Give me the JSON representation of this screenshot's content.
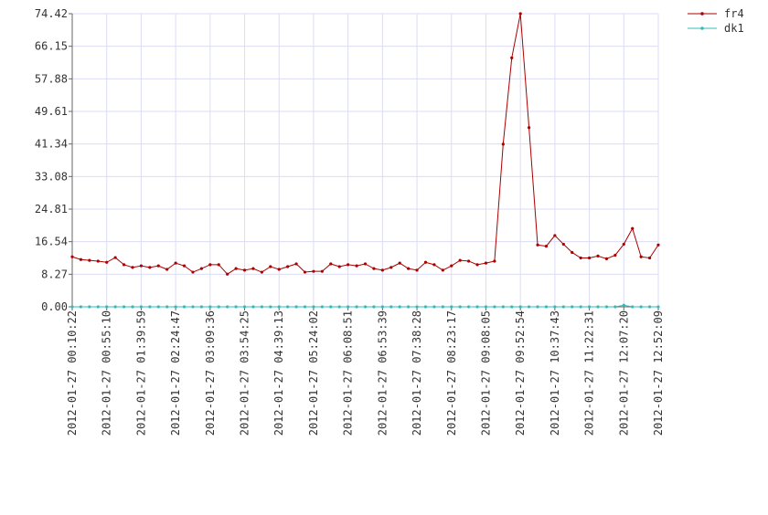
{
  "chart_data": {
    "type": "line",
    "categories": [
      "2012-01-27 00:10:22",
      null,
      null,
      null,
      "2012-01-27 00:55:10",
      null,
      null,
      null,
      "2012-01-27 01:39:59",
      null,
      null,
      null,
      "2012-01-27 02:24:47",
      null,
      null,
      null,
      "2012-01-27 03:09:36",
      null,
      null,
      null,
      "2012-01-27 03:54:25",
      null,
      null,
      null,
      "2012-01-27 04:39:13",
      null,
      null,
      null,
      "2012-01-27 05:24:02",
      null,
      null,
      null,
      "2012-01-27 06:08:51",
      null,
      null,
      null,
      "2012-01-27 06:53:39",
      null,
      null,
      null,
      "2012-01-27 07:38:28",
      null,
      null,
      null,
      "2012-01-27 08:23:17",
      null,
      null,
      null,
      "2012-01-27 09:08:05",
      null,
      null,
      null,
      "2012-01-27 09:52:54",
      null,
      null,
      null,
      "2012-01-27 10:37:43",
      null,
      null,
      null,
      "2012-01-27 11:22:31",
      null,
      null,
      null,
      "2012-01-27 12:07:20",
      null,
      null,
      null,
      "2012-01-27 12:52:09"
    ],
    "series": [
      {
        "name": "fr4",
        "color": "#aa0000",
        "values": [
          12.7,
          12.0,
          11.8,
          11.6,
          11.3,
          12.5,
          10.7,
          10.0,
          10.4,
          10.0,
          10.4,
          9.5,
          11.1,
          10.4,
          8.8,
          9.7,
          10.7,
          10.7,
          8.3,
          9.7,
          9.3,
          9.7,
          8.8,
          10.2,
          9.5,
          10.2,
          10.9,
          8.8,
          9.0,
          9.0,
          10.9,
          10.2,
          10.7,
          10.4,
          10.9,
          9.7,
          9.3,
          10.0,
          11.1,
          9.7,
          9.3,
          11.3,
          10.7,
          9.3,
          10.4,
          11.8,
          11.6,
          10.7,
          11.1,
          11.6,
          41.3,
          63.2,
          74.42,
          45.5,
          15.7,
          15.4,
          18.1,
          15.9,
          13.8,
          12.4,
          12.4,
          12.9,
          12.2,
          13.1,
          15.9,
          19.9,
          12.7,
          12.4,
          15.7
        ]
      },
      {
        "name": "dk1",
        "color": "#33bbbb",
        "values": [
          0,
          0,
          0,
          0,
          0,
          0,
          0,
          0,
          0,
          0,
          0,
          0,
          0,
          0,
          0,
          0,
          0,
          0,
          0,
          0,
          0,
          0,
          0,
          0,
          0,
          0,
          0,
          0,
          0,
          0,
          0,
          0,
          0,
          0,
          0,
          0,
          0,
          0,
          0,
          0,
          0,
          0,
          0,
          0,
          0,
          0,
          0,
          0,
          0,
          0,
          0,
          0,
          0,
          0,
          0,
          0,
          0,
          0,
          0,
          0,
          0,
          0,
          0,
          0,
          0.4,
          0,
          0,
          0,
          0
        ]
      }
    ],
    "ylim": [
      0,
      74.42
    ],
    "yticks": [
      {
        "value": 0,
        "label": "0.00"
      },
      8.27,
      16.54,
      24.81,
      33.08,
      41.34,
      49.61,
      57.88,
      66.15,
      74.42
    ],
    "grid": true,
    "legend": "top-right"
  }
}
